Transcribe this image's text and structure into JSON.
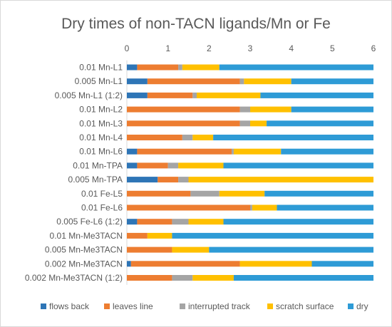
{
  "chart_data": {
    "type": "bar",
    "orientation": "horizontal",
    "stacked": true,
    "title": "Dry times of non-TACN ligands/Mn or Fe",
    "xlabel": "",
    "ylabel": "",
    "xlim": [
      0,
      6
    ],
    "xticks": [
      0,
      1,
      2,
      3,
      4,
      5,
      6
    ],
    "x_axis_position": "top",
    "grid": false,
    "legend_position": "bottom",
    "categories": [
      "0.01 Mn-L1",
      "0.005 Mn-L1",
      "0.005 Mn-L1 (1:2)",
      "0.01 Mn-L2",
      "0.01 Mn-L3",
      "0.01 Mn-L4",
      "0.01 Mn-L6",
      "0.01 Mn-TPA",
      "0.005 Mn-TPA",
      "0.01 Fe-L5",
      "0.01 Fe-L6",
      "0.005 Fe-L6 (1:2)",
      "0.01 Mn-Me3TACN",
      "0.005 Mn-Me3TACN",
      "0.002 Mn-Me3TACN",
      "0.002 Mn-Me3TACN (1:2)"
    ],
    "series": [
      {
        "name": "flows back",
        "color": "#2e75b6",
        "values": [
          0.25,
          0.5,
          0.5,
          0,
          0,
          0,
          0.25,
          0.25,
          0.75,
          0,
          0,
          0.25,
          0,
          0,
          0.1,
          0
        ]
      },
      {
        "name": "leaves line",
        "color": "#ed7d31",
        "values": [
          1.0,
          2.25,
          1.1,
          2.75,
          2.75,
          1.35,
          2.3,
          0.75,
          0.5,
          1.55,
          3.0,
          0.85,
          0.5,
          1.1,
          2.65,
          1.1
        ]
      },
      {
        "name": "interrupted track",
        "color": "#a5a5a5",
        "values": [
          0.1,
          0.1,
          0.1,
          0.25,
          0.25,
          0.25,
          0.05,
          0.25,
          0.25,
          0.7,
          0.05,
          0.4,
          0,
          0,
          0,
          0.5
        ]
      },
      {
        "name": "scratch surface",
        "color": "#ffc000",
        "values": [
          0.9,
          1.15,
          1.55,
          1.0,
          0.4,
          0.5,
          1.15,
          1.1,
          4.5,
          1.1,
          0.6,
          0.85,
          0.6,
          0.9,
          1.75,
          1.0
        ]
      },
      {
        "name": "dry",
        "color": "#2e9bd6",
        "values": [
          3.75,
          2.0,
          2.75,
          2.0,
          2.6,
          3.9,
          2.25,
          3.65,
          0,
          2.65,
          2.35,
          3.65,
          4.9,
          4.0,
          1.5,
          3.4
        ]
      }
    ]
  }
}
